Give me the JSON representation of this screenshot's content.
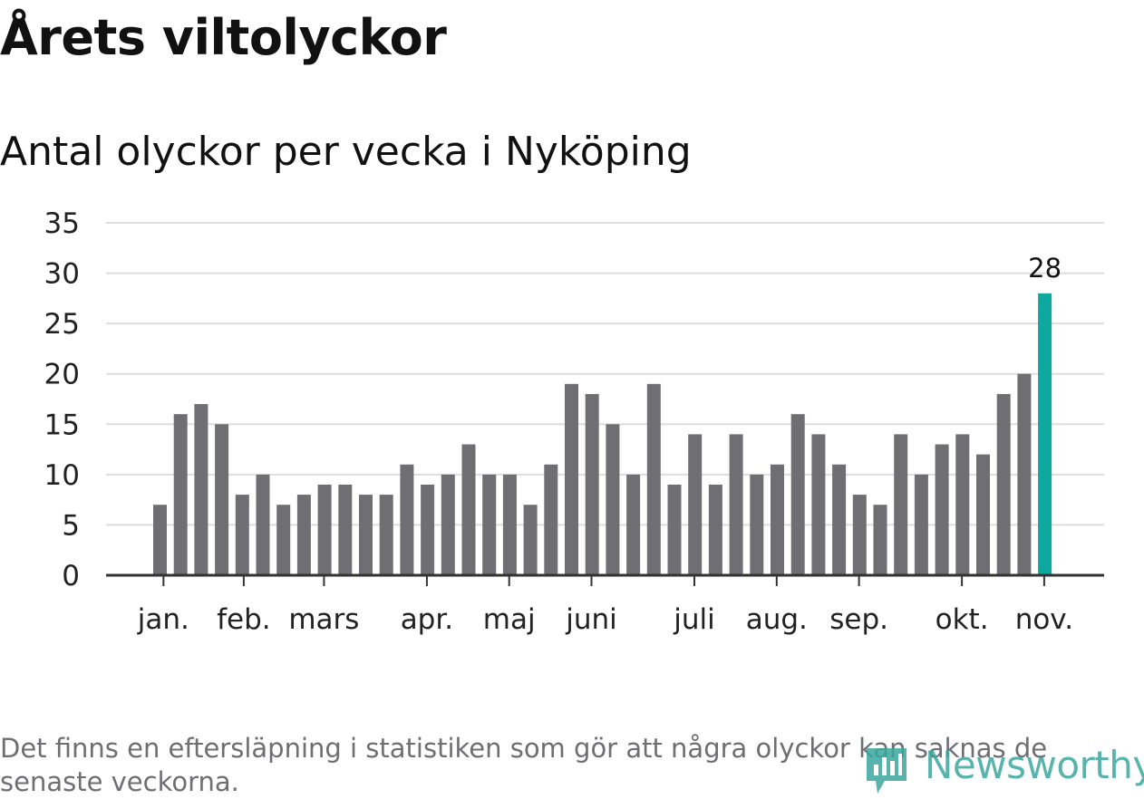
{
  "title": "Årets viltolyckor",
  "subtitle": "Antal olyckor per vecka i Nyköping",
  "footnote": "Det finns en eftersläpning i statistiken som gör att några olyckor kan saknas de senaste veckorna.",
  "brand": {
    "name": "Newsworthy",
    "color": "#3aa89f"
  },
  "colors": {
    "bar": "#6f6e73",
    "highlight": "#0ea89e",
    "grid": "#dddddd",
    "axis": "#333333"
  },
  "chart_data": {
    "type": "bar",
    "title": "Antal olyckor per vecka i Nyköping",
    "xlabel": "",
    "ylabel": "",
    "ylim": [
      0,
      35
    ],
    "yticks": [
      0,
      5,
      10,
      15,
      20,
      25,
      30,
      35
    ],
    "grid": true,
    "values": [
      7,
      16,
      17,
      15,
      8,
      10,
      7,
      8,
      9,
      9,
      8,
      8,
      11,
      9,
      10,
      13,
      10,
      10,
      7,
      11,
      19,
      18,
      15,
      10,
      19,
      9,
      14,
      9,
      14,
      10,
      11,
      16,
      14,
      11,
      8,
      7,
      14,
      10,
      13,
      14,
      12,
      18,
      20,
      28
    ],
    "highlight_index": 43,
    "highlight_label": "28",
    "month_labels": [
      {
        "label": "jan.",
        "week": 0.5
      },
      {
        "label": "feb.",
        "week": 4.4
      },
      {
        "label": "mars",
        "week": 8.3
      },
      {
        "label": "apr.",
        "week": 13.3
      },
      {
        "label": "maj",
        "week": 17.3
      },
      {
        "label": "juni",
        "week": 21.3
      },
      {
        "label": "juli",
        "week": 26.3
      },
      {
        "label": "aug.",
        "week": 30.3
      },
      {
        "label": "sep.",
        "week": 34.3
      },
      {
        "label": "okt.",
        "week": 39.3
      },
      {
        "label": "nov.",
        "week": 43.3
      }
    ]
  }
}
